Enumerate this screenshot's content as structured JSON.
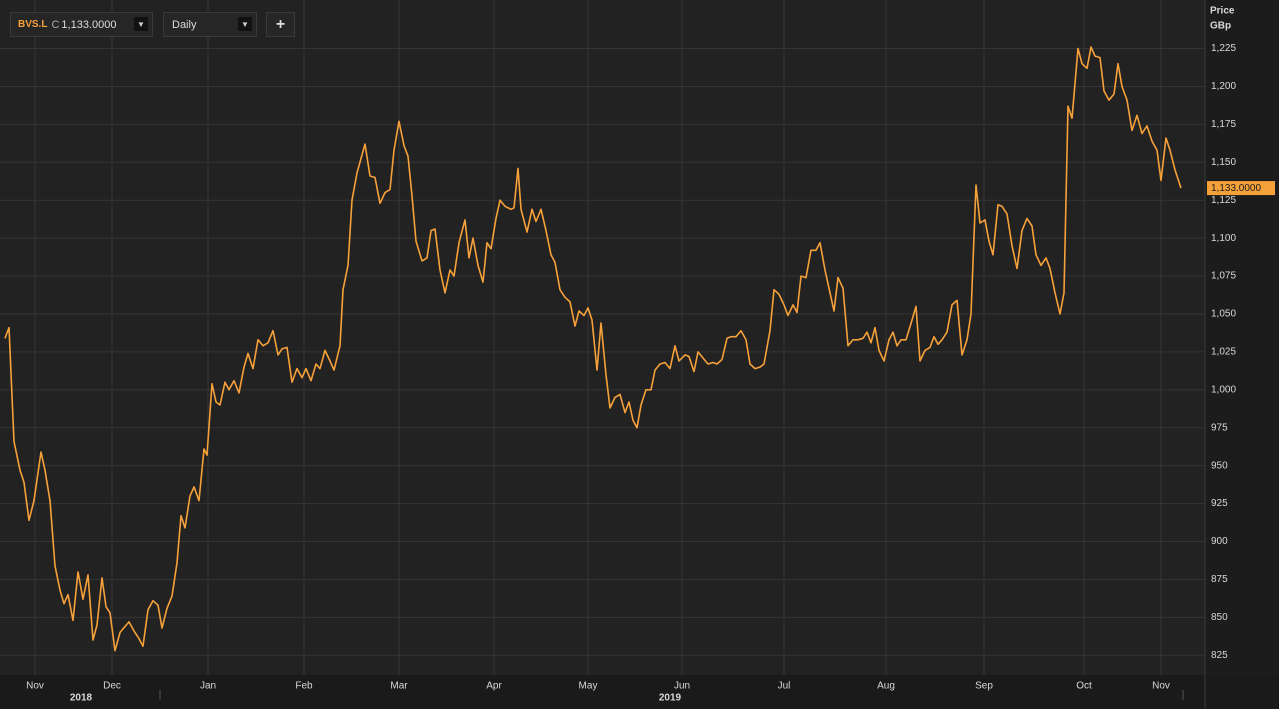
{
  "toolbar": {
    "symbol": "BVS.L",
    "close_label": "C",
    "close_value": "1,133.0000",
    "interval": "Daily",
    "add": "+"
  },
  "chart_data": {
    "type": "line",
    "y_axis_label": "Price",
    "y_axis_unit": "GBp",
    "color": "#f7a13a",
    "grid": true,
    "x": [
      0,
      4,
      9,
      15,
      19,
      24,
      29,
      36,
      40,
      45,
      50,
      55,
      59,
      63,
      68,
      73,
      78,
      83,
      88,
      92,
      97,
      101,
      105,
      110,
      115,
      120,
      124,
      129,
      134,
      138,
      143,
      148,
      153,
      157,
      162,
      167,
      172,
      176,
      180,
      185,
      189,
      194,
      199,
      202,
      207,
      211,
      215,
      220,
      224,
      229,
      234,
      239,
      243,
      248,
      253,
      258,
      263,
      268,
      273,
      277,
      282,
      287,
      292,
      297,
      301,
      306,
      311,
      315,
      320,
      325,
      329,
      335,
      338,
      343,
      347,
      352,
      360,
      365,
      370,
      375,
      380,
      385,
      389,
      394,
      399,
      403,
      407,
      411,
      417,
      422,
      426,
      430,
      435,
      440,
      445,
      449,
      454,
      460,
      464,
      468,
      473,
      478,
      482,
      486,
      491,
      495,
      500,
      506,
      509,
      513,
      516,
      522,
      527,
      531,
      536,
      541,
      546,
      550,
      555,
      560,
      565,
      570,
      574,
      579,
      583,
      587,
      592,
      596,
      601,
      605,
      610,
      615,
      620,
      624,
      628,
      632,
      636,
      641,
      646,
      650,
      655,
      660,
      665,
      670,
      674,
      680,
      684,
      689,
      693,
      698,
      703,
      708,
      712,
      717,
      722,
      726,
      731,
      736,
      741,
      745,
      750,
      755,
      759,
      765,
      769,
      774,
      779,
      783,
      788,
      792,
      796,
      801,
      806,
      811,
      815,
      820,
      825,
      829,
      833,
      838,
      843,
      848,
      853,
      858,
      862,
      866,
      870,
      874,
      879,
      884,
      888,
      892,
      896,
      901,
      907,
      911,
      915,
      920,
      925,
      929,
      933,
      937,
      942,
      947,
      952,
      957,
      962,
      966,
      971,
      975,
      980,
      984,
      988,
      993,
      997,
      1002,
      1007,
      1012,
      1017,
      1022,
      1027,
      1031,
      1036,
      1041,
      1045,
      1050,
      1055,
      1059,
      1063,
      1067,
      1073,
      1077,
      1082,
      1086,
      1090,
      1095,
      1099,
      1104,
      1109,
      1113,
      1117,
      1122,
      1127,
      1132,
      1137,
      1142,
      1147,
      1152,
      1156,
      1161,
      1165,
      1170,
      1176
    ],
    "values": [
      1034,
      1041,
      966,
      947,
      939,
      914,
      927,
      959,
      947,
      927,
      884,
      868,
      859,
      865,
      848,
      880,
      862,
      878,
      835,
      845,
      876,
      857,
      853,
      828,
      840,
      844,
      847,
      841,
      836,
      831,
      855,
      861,
      858,
      843,
      856,
      864,
      886,
      917,
      909,
      930,
      936,
      927,
      961,
      957,
      1004,
      992,
      990,
      1005,
      1000,
      1006,
      998,
      1015,
      1024,
      1014,
      1033,
      1029,
      1031,
      1039,
      1023,
      1027,
      1028,
      1005,
      1014,
      1008,
      1014,
      1006,
      1017,
      1014,
      1026,
      1019,
      1013,
      1029,
      1066,
      1082,
      1125,
      1143,
      1162,
      1141,
      1140,
      1123,
      1130,
      1132,
      1158,
      1177,
      1161,
      1154,
      1128,
      1098,
      1085,
      1087,
      1105,
      1106,
      1079,
      1064,
      1079,
      1075,
      1097,
      1112,
      1087,
      1100,
      1082,
      1071,
      1097,
      1093,
      1113,
      1125,
      1121,
      1119,
      1120,
      1146,
      1119,
      1104,
      1119,
      1111,
      1119,
      1105,
      1089,
      1084,
      1066,
      1061,
      1058,
      1042,
      1052,
      1049,
      1054,
      1046,
      1013,
      1044,
      1010,
      988,
      995,
      997,
      985,
      992,
      980,
      975,
      990,
      1000,
      1000,
      1013,
      1017,
      1018,
      1014,
      1029,
      1019,
      1023,
      1022,
      1012,
      1025,
      1021,
      1017,
      1018,
      1017,
      1020,
      1034,
      1035,
      1035,
      1039,
      1033,
      1017,
      1014,
      1015,
      1017,
      1039,
      1066,
      1063,
      1056,
      1049,
      1056,
      1051,
      1075,
      1074,
      1092,
      1092,
      1097,
      1079,
      1064,
      1052,
      1074,
      1067,
      1029,
      1033,
      1033,
      1034,
      1038,
      1031,
      1041,
      1026,
      1019,
      1033,
      1038,
      1029,
      1033,
      1033,
      1046,
      1055,
      1019,
      1026,
      1028,
      1035,
      1030,
      1033,
      1038,
      1056,
      1059,
      1023,
      1033,
      1050,
      1135,
      1110,
      1112,
      1098,
      1089,
      1122,
      1121,
      1116,
      1095,
      1080,
      1105,
      1113,
      1108,
      1089,
      1082,
      1087,
      1080,
      1064,
      1050,
      1064,
      1187,
      1179,
      1225,
      1215,
      1212,
      1226,
      1220,
      1219,
      1197,
      1191,
      1195,
      1215,
      1200,
      1191,
      1171,
      1181,
      1169,
      1174,
      1164,
      1158,
      1138,
      1166,
      1158,
      1145,
      1133
    ],
    "xlim": [
      0,
      1176
    ],
    "xticks": [
      {
        "value": 30,
        "label": "Nov"
      },
      {
        "value": 107,
        "label": "Dec"
      },
      {
        "value": 203,
        "label": "Jan"
      },
      {
        "value": 299,
        "label": "Feb"
      },
      {
        "value": 394,
        "label": "Mar"
      },
      {
        "value": 489,
        "label": "Apr"
      },
      {
        "value": 583,
        "label": "May"
      },
      {
        "value": 677,
        "label": "Jun"
      },
      {
        "value": 779,
        "label": "Jul"
      },
      {
        "value": 881,
        "label": "Aug"
      },
      {
        "value": 979,
        "label": "Sep"
      },
      {
        "value": 1079,
        "label": "Oct"
      },
      {
        "value": 1156,
        "label": "Nov"
      }
    ],
    "year_labels": [
      {
        "value": 76,
        "label": "2018"
      },
      {
        "value": 665,
        "label": "2019"
      }
    ],
    "ylim": [
      812,
      1257
    ],
    "yticks": [
      825,
      850,
      875,
      900,
      925,
      950,
      975,
      {
        "value": 1000,
        "label": "1,000"
      },
      {
        "value": 1025,
        "label": "1,025"
      },
      {
        "value": 1050,
        "label": "1,050"
      },
      {
        "value": 1075,
        "label": "1,075"
      },
      {
        "value": 1100,
        "label": "1,100"
      },
      {
        "value": 1125,
        "label": "1,125"
      },
      {
        "value": 1150,
        "label": "1,150"
      },
      {
        "value": 1175,
        "label": "1,175"
      },
      {
        "value": 1200,
        "label": "1,200"
      },
      {
        "value": 1225,
        "label": "1,225"
      }
    ],
    "last_label": {
      "value": 1133,
      "label": "1,133.0000"
    }
  }
}
